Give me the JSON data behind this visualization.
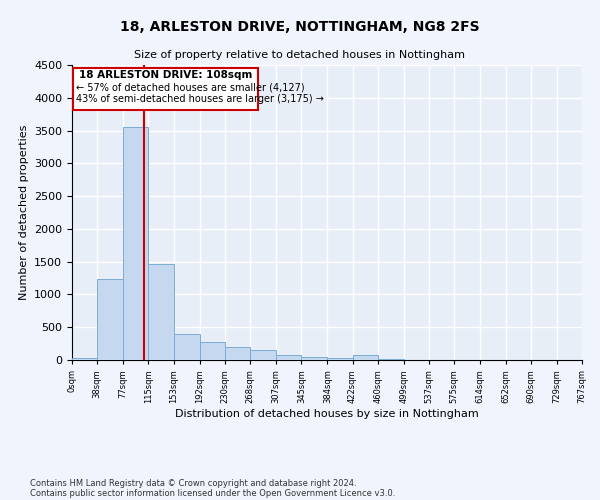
{
  "title1": "18, ARLESTON DRIVE, NOTTINGHAM, NG8 2FS",
  "title2": "Size of property relative to detached houses in Nottingham",
  "xlabel": "Distribution of detached houses by size in Nottingham",
  "ylabel": "Number of detached properties",
  "bin_edges": [
    0,
    38,
    77,
    115,
    153,
    192,
    230,
    268,
    307,
    345,
    384,
    422,
    460,
    499,
    537,
    575,
    614,
    652,
    690,
    729,
    767
  ],
  "bar_heights": [
    30,
    1230,
    3560,
    1470,
    390,
    280,
    200,
    160,
    80,
    50,
    30,
    70,
    10,
    0,
    0,
    0,
    0,
    0,
    0,
    0
  ],
  "bar_color": "#c5d8f0",
  "bar_edge_color": "#7aadd4",
  "property_size": 108,
  "property_label": "18 ARLESTON DRIVE: 108sqm",
  "annotation_line1": "← 57% of detached houses are smaller (4,127)",
  "annotation_line2": "43% of semi-detached houses are larger (3,175) →",
  "vline_color": "#cc0000",
  "box_edge_color": "#cc0000",
  "ylim": [
    0,
    4500
  ],
  "yticks": [
    0,
    500,
    1000,
    1500,
    2000,
    2500,
    3000,
    3500,
    4000,
    4500
  ],
  "footnote1": "Contains HM Land Registry data © Crown copyright and database right 2024.",
  "footnote2": "Contains public sector information licensed under the Open Government Licence v3.0.",
  "background_color": "#e8eef8",
  "fig_background_color": "#f0f4fc",
  "grid_color": "#ffffff"
}
